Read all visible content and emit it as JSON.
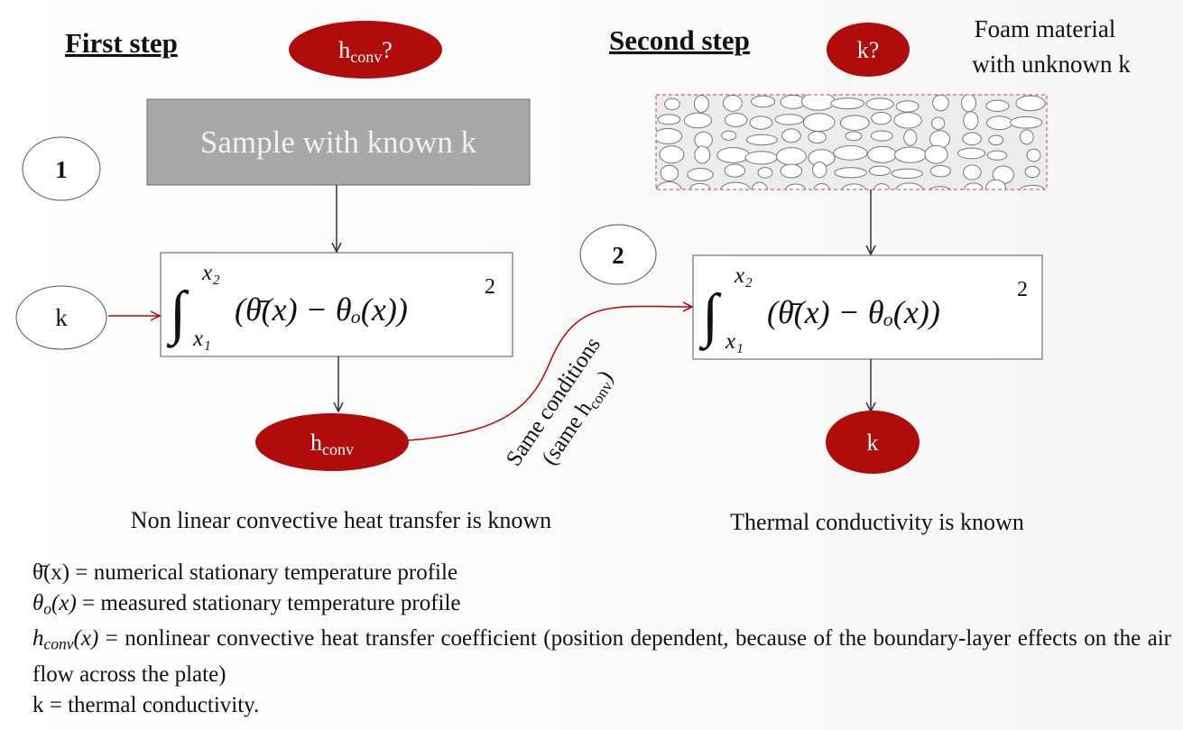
{
  "first_step": {
    "title": "First step",
    "unknown": {
      "base": "h",
      "sub": "conv",
      "suffix": "?"
    },
    "step_number": "1",
    "sample_label": "Sample with known k",
    "input": "k",
    "result": {
      "base": "h",
      "sub": "conv"
    },
    "conclusion": "Non linear convective heat transfer is known"
  },
  "second_step": {
    "title": "Second step",
    "unknown": "k?",
    "note": [
      "Foam material",
      "with unknown k"
    ],
    "step_number": "2",
    "result": "k",
    "conclusion": "Thermal conductivity is known"
  },
  "formula": {
    "integral": "∫",
    "upper": "x₂",
    "lower": "x₁",
    "expression": "(θ̄(x) − θₒ(x))",
    "exponent": "2"
  },
  "link_label": {
    "line1": "Same conditions",
    "line2": {
      "prefix": "(same h",
      "sub": "conv",
      "suffix": ")"
    }
  },
  "definitions": [
    {
      "term": {
        "base": "θ̄",
        "suffix": "(x)"
      },
      "definition": " = numerical stationary temperature profile"
    },
    {
      "term": {
        "base": "θ",
        "sub": "o",
        "suffix": "(x)"
      },
      "definition": " = measured stationary temperature profile"
    },
    {
      "term": {
        "base": "h",
        "sub": "conv",
        "suffix": "(x)"
      },
      "definition": " = nonlinear convective heat transfer coefficient (position dependent, because of the boundary-layer effects on the air flow across the plate)"
    },
    {
      "term": {
        "base": "k"
      },
      "definition": " = thermal conductivity."
    }
  ]
}
